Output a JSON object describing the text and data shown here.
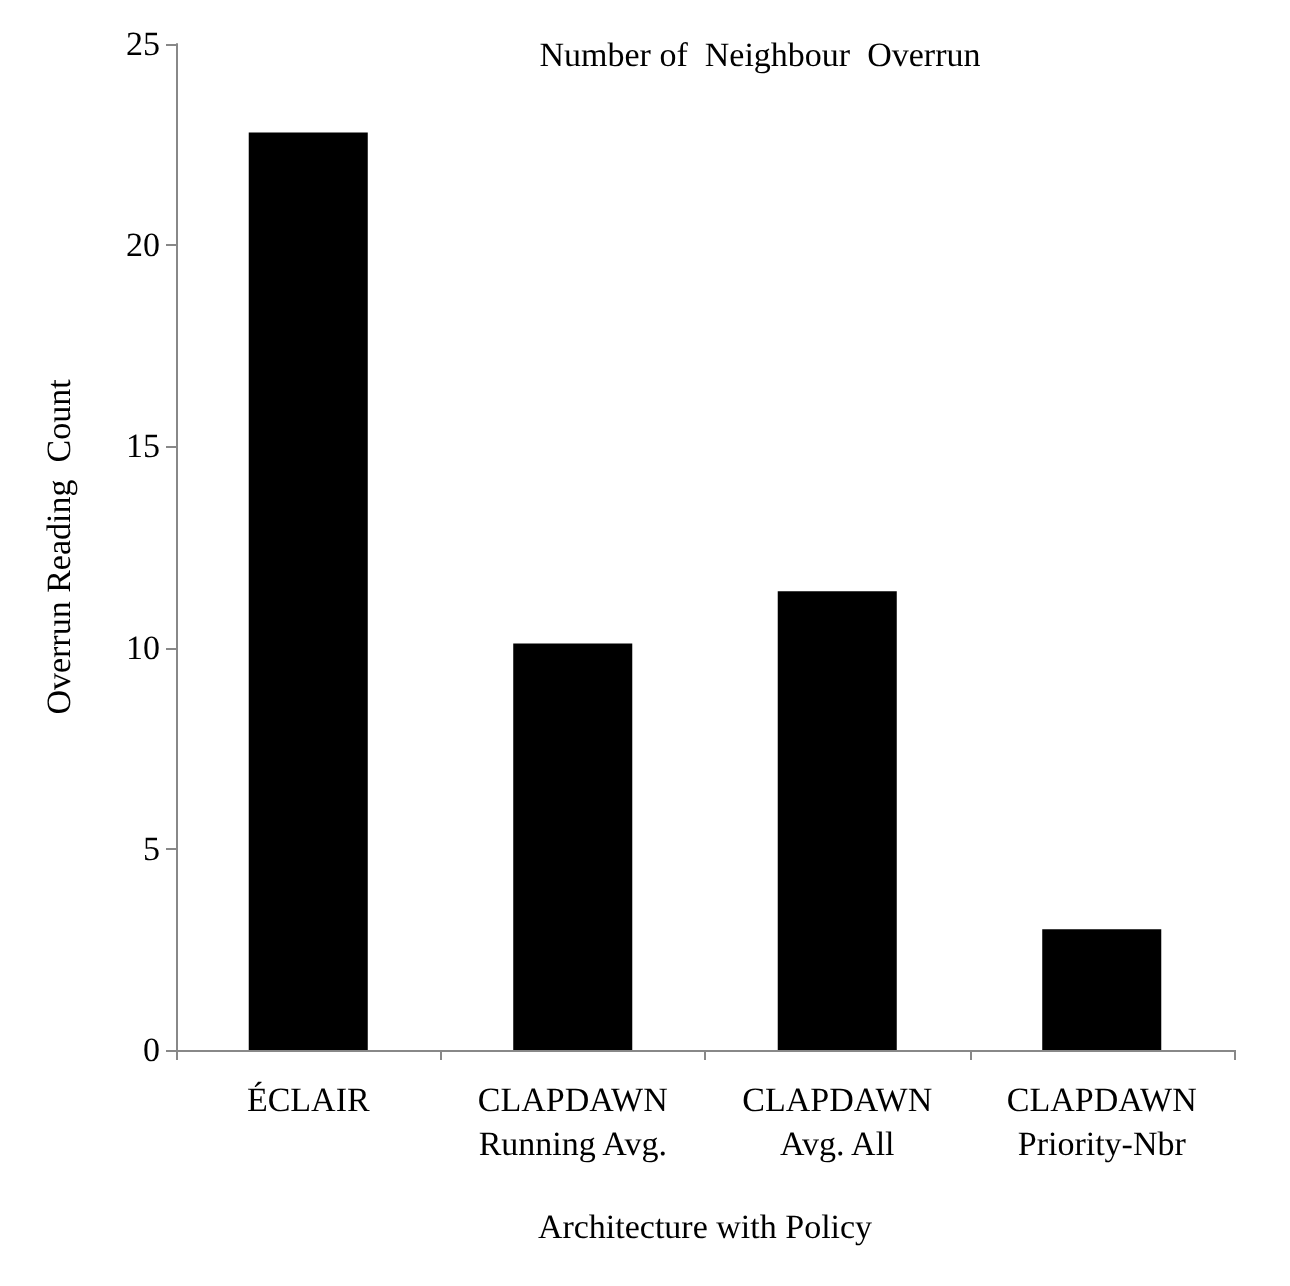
{
  "chart_data": {
    "type": "bar",
    "title": "Number of  Neighbour  Overrun",
    "xlabel": "Architecture with Policy",
    "ylabel": "Overrun Reading  Count",
    "categories": [
      "ÉCLAIR",
      "CLAPDAWN\nRunning Avg.",
      "CLAPDAWN\nAvg. All",
      "CLAPDAWN\nPriority-Nbr"
    ],
    "values": [
      22.8,
      10.1,
      11.4,
      3.0
    ],
    "color": "#000000",
    "ylim": [
      0,
      25
    ],
    "yticks": [
      0,
      5,
      10,
      15,
      20,
      25
    ],
    "grid": false
  }
}
